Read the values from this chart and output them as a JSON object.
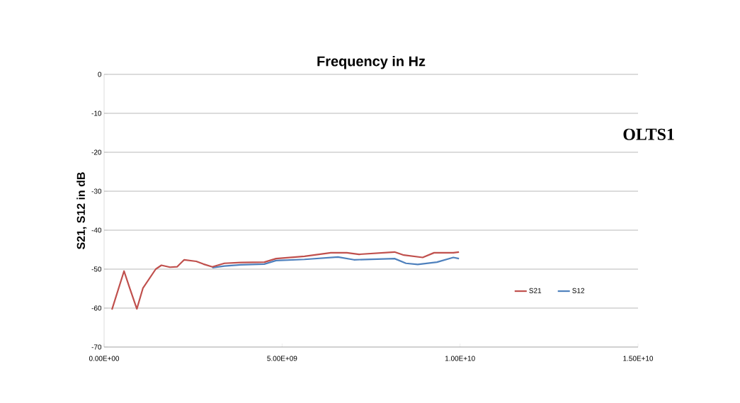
{
  "chart_data": {
    "type": "line",
    "xlabel": "Frequency in Hz",
    "ylabel": "S21, S12 in dB",
    "xlim": [
      0,
      15000000000
    ],
    "ylim": [
      -70,
      0
    ],
    "xticks": [
      {
        "value": 0,
        "label": "0.00E+00"
      },
      {
        "value": 5000000000,
        "label": "5.00E+09"
      },
      {
        "value": 10000000000,
        "label": "1.00E+10"
      },
      {
        "value": 15000000000,
        "label": "1.50E+10"
      }
    ],
    "yticks": [
      0,
      -10,
      -20,
      -30,
      -40,
      -50,
      -60,
      -70
    ],
    "grid": "y",
    "legend": "right",
    "annotations": [
      "OLTS1"
    ],
    "series": [
      {
        "name": "S21",
        "color": "#c0504d",
        "x": [
          220000000,
          560000000,
          720000000,
          920000000,
          1090000000,
          1450000000,
          1610000000,
          1850000000,
          2050000000,
          2250000000,
          2590000000,
          2790000000,
          3040000000,
          3380000000,
          3840000000,
          4500000000,
          4830000000,
          5630000000,
          6370000000,
          6820000000,
          7160000000,
          8160000000,
          8420000000,
          8950000000,
          9270000000,
          9810000000,
          9970000000
        ],
        "values": [
          -60.4,
          -50.5,
          -54.9,
          -60.2,
          -54.9,
          -50,
          -49,
          -49.5,
          -49.4,
          -47.6,
          -48,
          -48.7,
          -49.4,
          -48.5,
          -48.3,
          -48.2,
          -47.3,
          -46.7,
          -45.8,
          -45.8,
          -46.2,
          -45.6,
          -46.4,
          -47,
          -45.8,
          -45.8,
          -45.6
        ]
      },
      {
        "name": "S12",
        "color": "#4f81bd",
        "x": [
          3040000000,
          3380000000,
          3840000000,
          4500000000,
          4830000000,
          5630000000,
          6570000000,
          7020000000,
          8160000000,
          8480000000,
          8810000000,
          9350000000,
          9810000000,
          9970000000
        ],
        "values": [
          -49.6,
          -49.2,
          -48.9,
          -48.7,
          -47.8,
          -47.5,
          -46.9,
          -47.6,
          -47.3,
          -48.5,
          -48.8,
          -48.2,
          -47,
          -47.3
        ]
      }
    ]
  }
}
